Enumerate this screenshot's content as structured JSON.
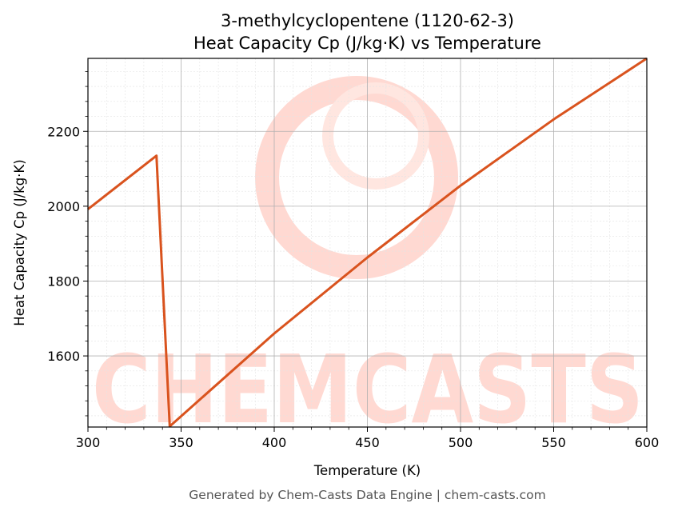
{
  "chart_data": {
    "type": "line",
    "title": "3-methylcyclopentene (1120-62-3)",
    "subtitle": "Heat Capacity Cp (J/kg·K) vs Temperature",
    "xlabel": "Temperature (K)",
    "ylabel": "Heat Capacity Cp (J/kg·K)",
    "xlim": [
      300,
      600
    ],
    "ylim": [
      1410,
      2395
    ],
    "xticks": [
      300,
      350,
      400,
      450,
      500,
      550,
      600
    ],
    "yticks": [
      1600,
      1800,
      2000,
      2200
    ],
    "grid": true,
    "series": [
      {
        "color": "#d9531e",
        "x": [
          300,
          336.8,
          343.9,
          400,
          450,
          500,
          550,
          600
        ],
        "y": [
          1992,
          2135,
          1412,
          1660,
          1863,
          2055,
          2232,
          2395
        ]
      }
    ]
  },
  "footer": "Generated by Chem-Casts Data Engine | chem-casts.com",
  "watermark": "CHEMCASTS"
}
